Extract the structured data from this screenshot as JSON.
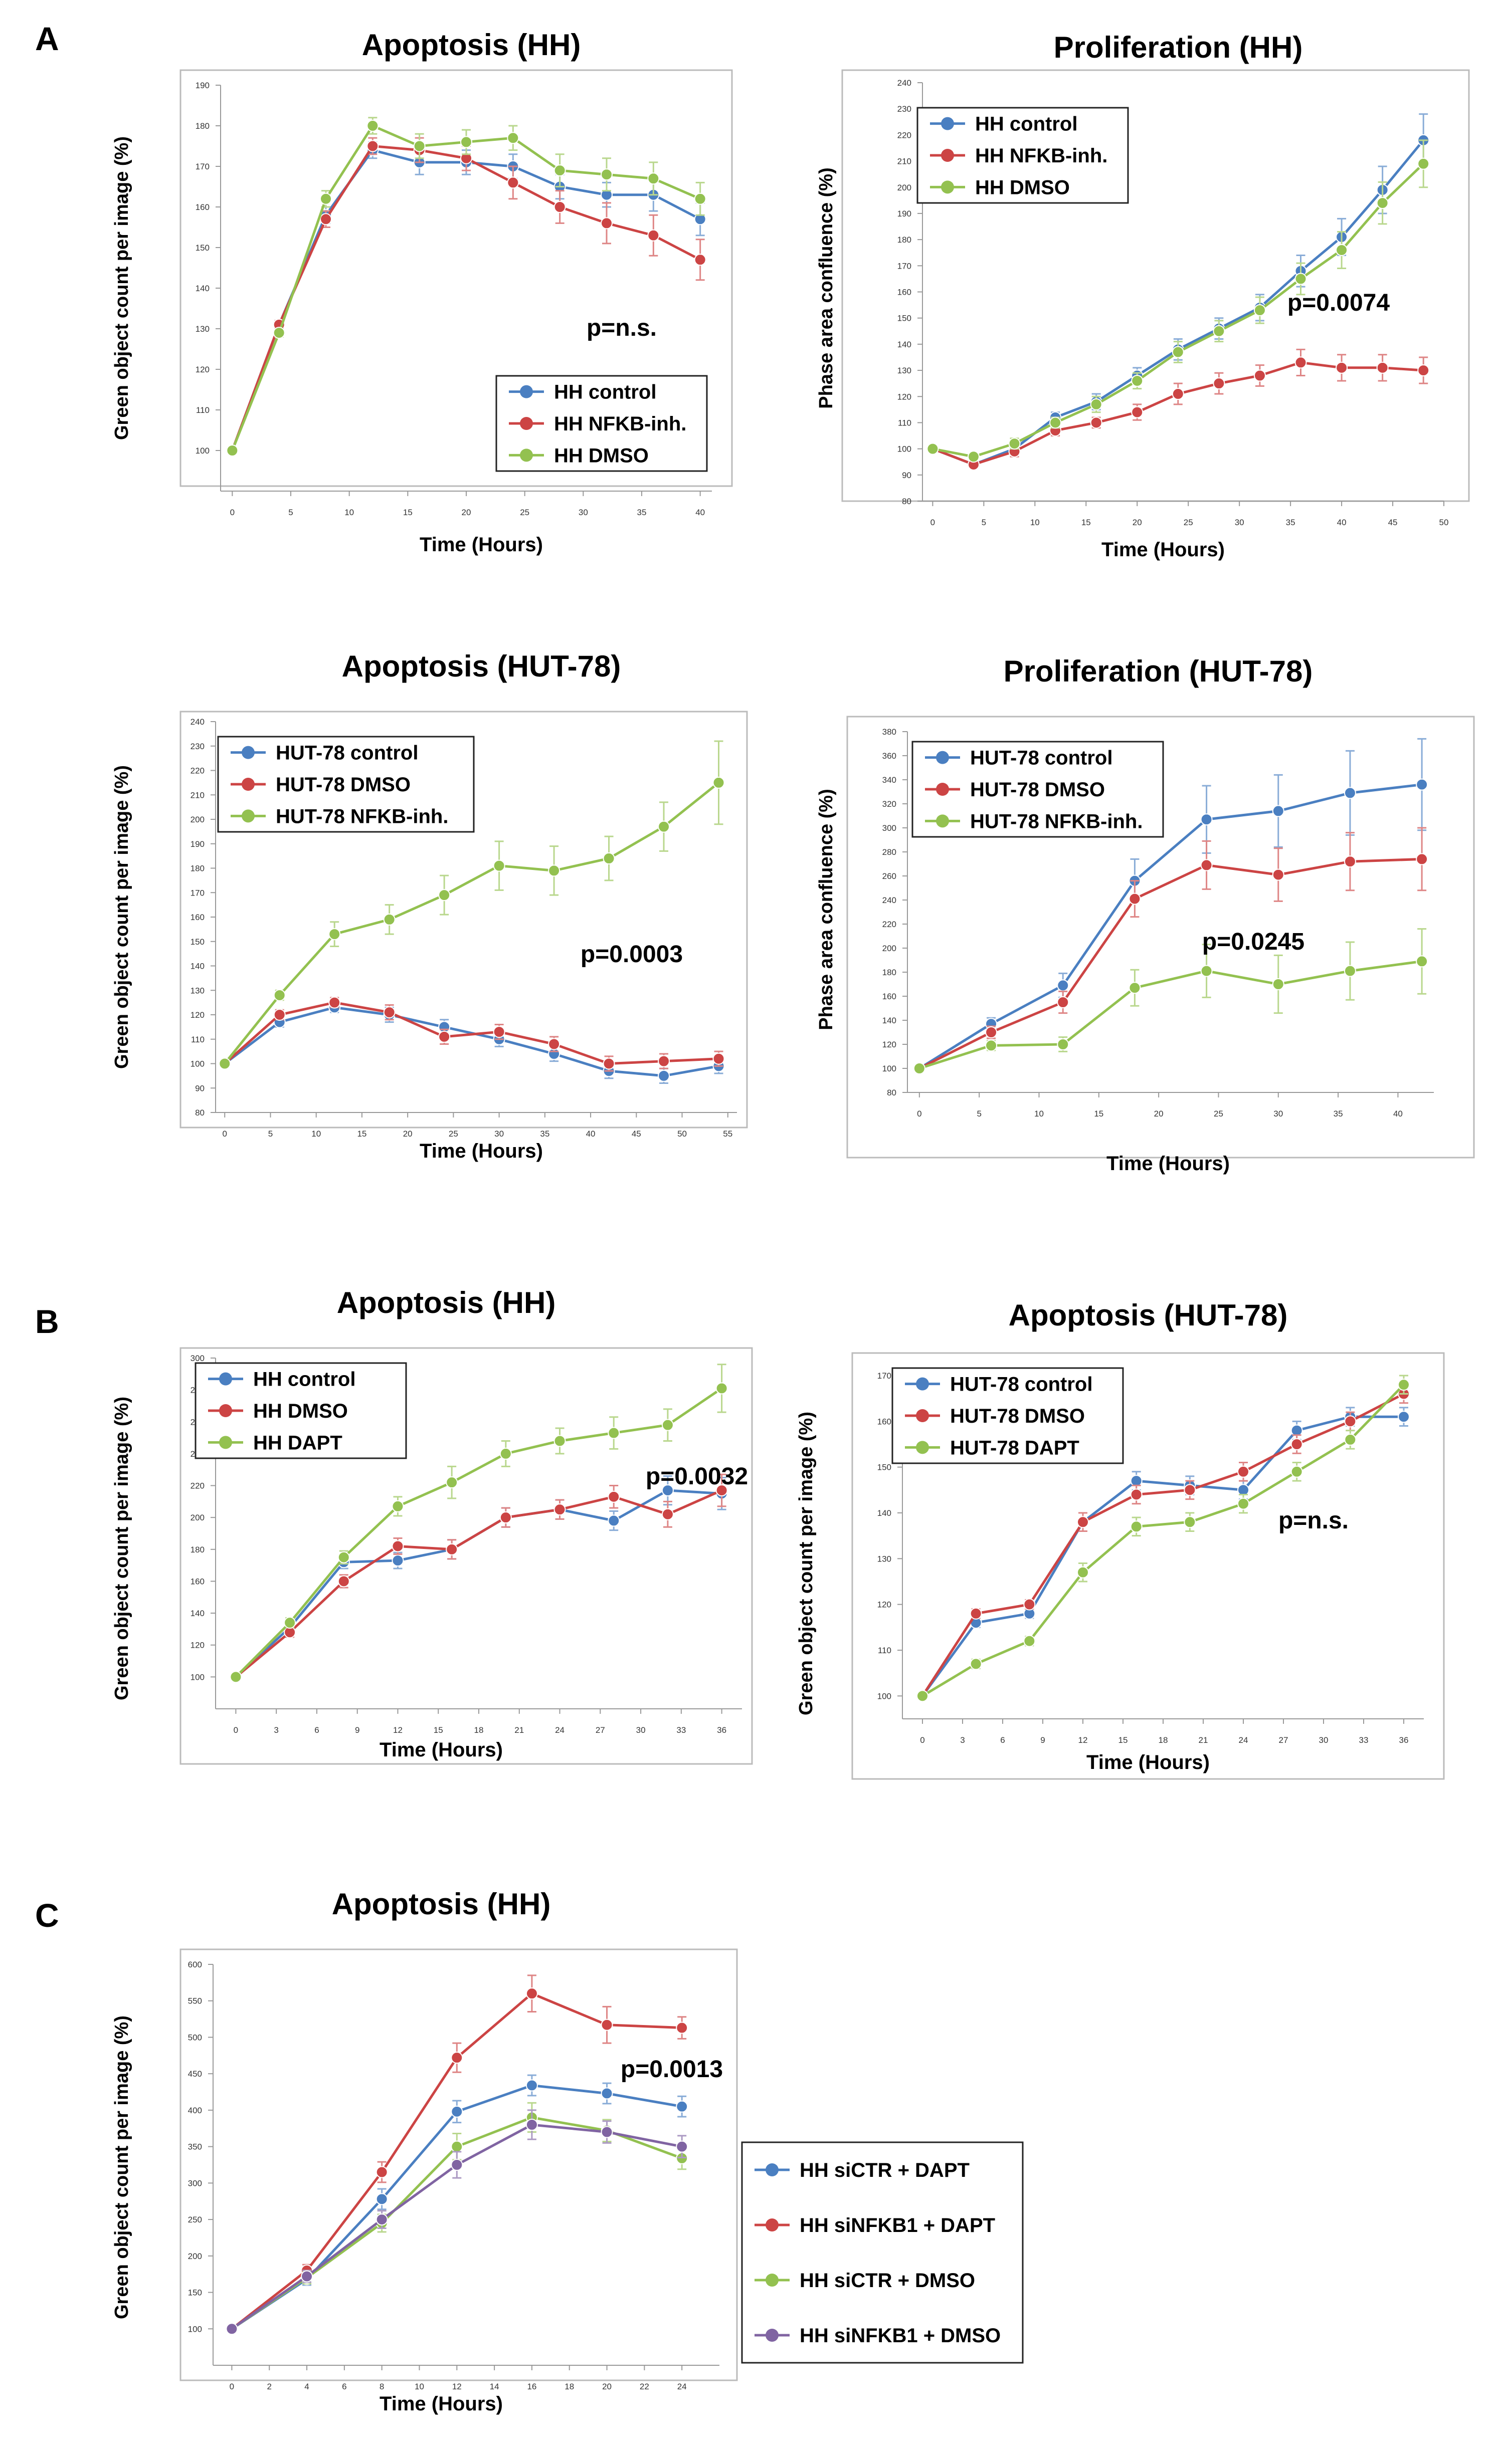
{
  "panel_labels": [
    "A",
    "B",
    "C"
  ],
  "colors": {
    "blue": "#4a7fc1",
    "red": "#cc4444",
    "green": "#93c150",
    "purple": "#8064a2",
    "axis": "#999999",
    "frame": "#bbbbbb"
  },
  "chart_data": [
    {
      "type": "line",
      "title": "Apoptosis (HH)",
      "xlabel": "Time (Hours)",
      "ylabel": "Green object count per image (%)",
      "xlim": [
        -1,
        41
      ],
      "ylim": [
        90,
        190
      ],
      "xticks": [
        0,
        5,
        10,
        15,
        20,
        25,
        30,
        35,
        40
      ],
      "yticks": [
        100,
        110,
        120,
        130,
        140,
        150,
        160,
        170,
        180,
        190
      ],
      "annotation": "p=n.s.",
      "legend_position": "bottom-right",
      "series": [
        {
          "name": "HH  control",
          "color": "blue",
          "x": [
            0,
            4,
            8,
            12,
            16,
            20,
            24,
            28,
            32,
            36,
            40
          ],
          "y": [
            100,
            131,
            158,
            174,
            171,
            171,
            170,
            165,
            163,
            163,
            157
          ],
          "err": [
            0,
            1,
            2,
            2,
            3,
            3,
            3,
            3,
            3,
            4,
            4
          ]
        },
        {
          "name": "HH  NFKB-inh.",
          "color": "red",
          "x": [
            0,
            4,
            8,
            12,
            16,
            20,
            24,
            28,
            32,
            36,
            40
          ],
          "y": [
            100,
            131,
            157,
            175,
            174,
            172,
            166,
            160,
            156,
            153,
            147
          ],
          "err": [
            0,
            1,
            2,
            2,
            3,
            3,
            4,
            4,
            5,
            5,
            5
          ]
        },
        {
          "name": "HH  DMSO",
          "color": "green",
          "x": [
            0,
            4,
            8,
            12,
            16,
            20,
            24,
            28,
            32,
            36,
            40
          ],
          "y": [
            100,
            129,
            162,
            180,
            175,
            176,
            177,
            169,
            168,
            167,
            162
          ],
          "err": [
            0,
            1,
            2,
            2,
            3,
            3,
            3,
            4,
            4,
            4,
            4
          ]
        }
      ]
    },
    {
      "type": "line",
      "title": "Proliferation  (HH)",
      "xlabel": "Time (Hours)",
      "ylabel": "Phase area confluence (%)",
      "xlim": [
        -1,
        50
      ],
      "ylim": [
        80,
        240
      ],
      "xticks": [
        0,
        5,
        10,
        15,
        20,
        25,
        30,
        35,
        40,
        45,
        50
      ],
      "yticks": [
        80,
        90,
        100,
        110,
        120,
        130,
        140,
        150,
        160,
        170,
        180,
        190,
        200,
        210,
        220,
        230,
        240
      ],
      "annotation": "p=0.0074",
      "legend_position": "top-left",
      "series": [
        {
          "name": "HH  control",
          "color": "blue",
          "x": [
            0,
            4,
            8,
            12,
            16,
            20,
            24,
            28,
            32,
            36,
            40,
            44,
            48
          ],
          "y": [
            100,
            94,
            100,
            112,
            118,
            128,
            138,
            146,
            154,
            168,
            181,
            199,
            218
          ],
          "err": [
            0,
            1,
            2,
            2,
            3,
            3,
            4,
            4,
            5,
            6,
            7,
            9,
            10
          ]
        },
        {
          "name": "HH  NFKB-inh.",
          "color": "red",
          "x": [
            0,
            4,
            8,
            12,
            16,
            20,
            24,
            28,
            32,
            36,
            40,
            44,
            48
          ],
          "y": [
            100,
            94,
            99,
            107,
            110,
            114,
            121,
            125,
            128,
            133,
            131,
            131,
            130
          ],
          "err": [
            0,
            1,
            2,
            2,
            2,
            3,
            4,
            4,
            4,
            5,
            5,
            5,
            5
          ]
        },
        {
          "name": "HH  DMSO",
          "color": "green",
          "x": [
            0,
            4,
            8,
            12,
            16,
            20,
            24,
            28,
            32,
            36,
            40,
            44,
            48
          ],
          "y": [
            100,
            97,
            102,
            110,
            117,
            126,
            137,
            145,
            153,
            165,
            176,
            194,
            209
          ],
          "err": [
            0,
            1,
            2,
            2,
            3,
            3,
            4,
            4,
            5,
            6,
            7,
            8,
            9
          ]
        }
      ]
    },
    {
      "type": "line",
      "title": "Apoptosis (HUT-78)",
      "xlabel": "Time (Hours)",
      "ylabel": "Green object count per image (%)",
      "xlim": [
        -1,
        56
      ],
      "ylim": [
        80,
        240
      ],
      "xticks": [
        0,
        5,
        10,
        15,
        20,
        25,
        30,
        35,
        40,
        45,
        50,
        55
      ],
      "yticks": [
        80,
        90,
        100,
        110,
        120,
        130,
        140,
        150,
        160,
        170,
        180,
        190,
        200,
        210,
        220,
        230,
        240
      ],
      "annotation": "p=0.0003",
      "legend_position": "top-left",
      "series": [
        {
          "name": "HUT-78  control",
          "color": "blue",
          "x": [
            0,
            6,
            12,
            18,
            24,
            30,
            36,
            42,
            48,
            54
          ],
          "y": [
            100,
            117,
            123,
            120,
            115,
            110,
            104,
            97,
            95,
            99
          ],
          "err": [
            0,
            2,
            2,
            3,
            3,
            3,
            3,
            3,
            3,
            3
          ]
        },
        {
          "name": "HUT-78  DMSO",
          "color": "red",
          "x": [
            0,
            6,
            12,
            18,
            24,
            30,
            36,
            42,
            48,
            54
          ],
          "y": [
            100,
            120,
            125,
            121,
            111,
            113,
            108,
            100,
            101,
            102
          ],
          "err": [
            0,
            2,
            2,
            3,
            3,
            3,
            3,
            3,
            3,
            3
          ]
        },
        {
          "name": "HUT-78  NFKB-inh.",
          "color": "green",
          "x": [
            0,
            6,
            12,
            18,
            24,
            30,
            36,
            42,
            48,
            54
          ],
          "y": [
            100,
            128,
            153,
            159,
            169,
            181,
            179,
            184,
            197,
            215
          ],
          "err": [
            0,
            2,
            5,
            6,
            8,
            10,
            10,
            9,
            10,
            17
          ]
        }
      ]
    },
    {
      "type": "line",
      "title": "Proliferation  (HUT-78)",
      "xlabel": "Time (Hours)",
      "ylabel": "Phase area confluence (%)",
      "xlim": [
        -1,
        43
      ],
      "ylim": [
        80,
        380
      ],
      "xticks": [
        0,
        5,
        10,
        15,
        20,
        25,
        30,
        35,
        40
      ],
      "yticks": [
        80,
        100,
        120,
        140,
        160,
        180,
        200,
        220,
        240,
        260,
        280,
        300,
        320,
        340,
        360,
        380
      ],
      "annotation": "p=0.0245",
      "legend_position": "top-left",
      "series": [
        {
          "name": "HUT-78  control",
          "color": "blue",
          "x": [
            0,
            6,
            12,
            18,
            24,
            30,
            36,
            42
          ],
          "y": [
            100,
            137,
            169,
            256,
            307,
            314,
            329,
            336
          ],
          "err": [
            0,
            5,
            10,
            18,
            28,
            30,
            35,
            38
          ]
        },
        {
          "name": "HUT-78  DMSO",
          "color": "red",
          "x": [
            0,
            6,
            12,
            18,
            24,
            30,
            36,
            42
          ],
          "y": [
            100,
            130,
            155,
            241,
            269,
            261,
            272,
            274
          ],
          "err": [
            0,
            5,
            9,
            15,
            20,
            22,
            24,
            26
          ]
        },
        {
          "name": "HUT-78  NFKB-inh.",
          "color": "green",
          "x": [
            0,
            6,
            12,
            18,
            24,
            30,
            36,
            42
          ],
          "y": [
            100,
            119,
            120,
            167,
            181,
            170,
            181,
            189
          ],
          "err": [
            0,
            4,
            6,
            15,
            22,
            24,
            24,
            27
          ]
        }
      ]
    },
    {
      "type": "line",
      "title": "Apoptosis (HH)",
      "xlabel": "Time (Hours)",
      "ylabel": "Green object count per image (%)",
      "xlim": [
        -1.5,
        37.5
      ],
      "ylim": [
        80,
        300
      ],
      "xticks": [
        0,
        3,
        6,
        9,
        12,
        15,
        18,
        21,
        24,
        27,
        30,
        33,
        36
      ],
      "yticks": [
        100,
        120,
        140,
        160,
        180,
        200,
        220,
        240,
        260,
        280,
        300
      ],
      "annotation": "p=0.0032",
      "legend_position": "top-left",
      "series": [
        {
          "name": "HH  control",
          "color": "blue",
          "x": [
            0,
            4,
            8,
            12,
            16,
            20,
            24,
            28,
            32,
            36
          ],
          "y": [
            100,
            131,
            172,
            173,
            180,
            200,
            205,
            198,
            217,
            215
          ],
          "err": [
            0,
            3,
            4,
            5,
            6,
            6,
            6,
            6,
            9,
            10
          ]
        },
        {
          "name": "HH  DMSO",
          "color": "red",
          "x": [
            0,
            4,
            8,
            12,
            16,
            20,
            24,
            28,
            32,
            36
          ],
          "y": [
            100,
            128,
            160,
            182,
            180,
            200,
            205,
            213,
            202,
            217
          ],
          "err": [
            0,
            3,
            4,
            5,
            6,
            6,
            6,
            7,
            8,
            10
          ]
        },
        {
          "name": "HH  DAPT",
          "color": "green",
          "x": [
            0,
            4,
            8,
            12,
            16,
            20,
            24,
            28,
            32,
            36
          ],
          "y": [
            100,
            134,
            175,
            207,
            222,
            240,
            248,
            253,
            258,
            281
          ],
          "err": [
            0,
            3,
            4,
            6,
            10,
            8,
            8,
            10,
            10,
            15
          ]
        }
      ]
    },
    {
      "type": "line",
      "title": "Apoptosis (HUT-78)",
      "xlabel": "Time (Hours)",
      "ylabel": "Green object count per image (%)",
      "xlim": [
        -1.5,
        37.5
      ],
      "ylim": [
        95,
        170
      ],
      "xticks": [
        0,
        3,
        6,
        9,
        12,
        15,
        18,
        21,
        24,
        27,
        30,
        33,
        36
      ],
      "yticks": [
        100,
        110,
        120,
        130,
        140,
        150,
        160,
        170
      ],
      "annotation": "p=n.s.",
      "legend_position": "top-left",
      "series": [
        {
          "name": "HUT-78  control",
          "color": "blue",
          "x": [
            0,
            4,
            8,
            12,
            16,
            20,
            24,
            28,
            32,
            36
          ],
          "y": [
            100,
            116,
            118,
            138,
            147,
            146,
            145,
            158,
            161,
            161
          ],
          "err": [
            0,
            1,
            1,
            2,
            2,
            2,
            2,
            2,
            2,
            2
          ]
        },
        {
          "name": "HUT-78  DMSO",
          "color": "red",
          "x": [
            0,
            4,
            8,
            12,
            16,
            20,
            24,
            28,
            32,
            36
          ],
          "y": [
            100,
            118,
            120,
            138,
            144,
            145,
            149,
            155,
            160,
            166
          ],
          "err": [
            0,
            1,
            1,
            2,
            2,
            2,
            2,
            2,
            2,
            2
          ]
        },
        {
          "name": "HUT-78  DAPT",
          "color": "green",
          "x": [
            0,
            4,
            8,
            12,
            16,
            20,
            24,
            28,
            32,
            36
          ],
          "y": [
            100,
            107,
            112,
            127,
            137,
            138,
            142,
            149,
            156,
            168
          ],
          "err": [
            0,
            1,
            1,
            2,
            2,
            2,
            2,
            2,
            2,
            2
          ]
        }
      ]
    },
    {
      "type": "line",
      "title": "Apoptosis (HH)",
      "xlabel": "Time (Hours)",
      "ylabel": "Green object count per image (%)",
      "xlim": [
        -1,
        26
      ],
      "ylim": [
        50,
        600
      ],
      "xticks": [
        0,
        2,
        4,
        6,
        8,
        10,
        12,
        14,
        16,
        18,
        20,
        22,
        24
      ],
      "yticks": [
        100,
        150,
        200,
        250,
        300,
        350,
        400,
        450,
        500,
        550,
        600
      ],
      "annotation": "p=0.0013",
      "legend_position": "outside-right",
      "series": [
        {
          "name": "HH  siCTR      + DAPT",
          "color": "blue",
          "x": [
            0,
            4,
            8,
            12,
            16,
            20,
            24
          ],
          "y": [
            100,
            168,
            278,
            398,
            434,
            423,
            405
          ],
          "err": [
            0,
            8,
            14,
            15,
            14,
            14,
            14
          ]
        },
        {
          "name": "HH  siNFKB1  + DAPT",
          "color": "red",
          "x": [
            0,
            4,
            8,
            12,
            16,
            20,
            24
          ],
          "y": [
            100,
            180,
            315,
            472,
            560,
            517,
            513
          ],
          "err": [
            0,
            8,
            14,
            20,
            25,
            25,
            15
          ]
        },
        {
          "name": "HH  siCTR      + DMSO",
          "color": "green",
          "x": [
            0,
            4,
            8,
            12,
            16,
            20,
            24
          ],
          "y": [
            100,
            170,
            245,
            350,
            390,
            372,
            334
          ],
          "err": [
            0,
            8,
            12,
            18,
            20,
            15,
            15
          ]
        },
        {
          "name": "HH  siNFKB1  + DMSO",
          "color": "purple",
          "x": [
            0,
            4,
            8,
            12,
            16,
            20,
            24
          ],
          "y": [
            100,
            172,
            250,
            325,
            380,
            370,
            350
          ],
          "err": [
            0,
            8,
            12,
            18,
            20,
            15,
            15
          ]
        }
      ]
    }
  ]
}
